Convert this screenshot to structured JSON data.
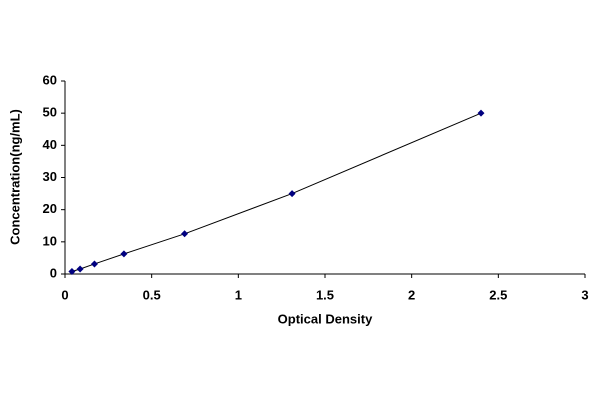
{
  "chart_data": {
    "type": "scatter",
    "xlabel": "Optical Density",
    "ylabel": "Concentration(ng/mL)",
    "x": [
      0.04,
      0.087,
      0.17,
      0.34,
      0.69,
      1.31,
      2.4
    ],
    "values": [
      0.78,
      1.56,
      3.12,
      6.25,
      12.5,
      25,
      50
    ],
    "color": "#000080",
    "line_color": "#000000",
    "connect": true,
    "xlim": [
      0,
      3
    ],
    "xticks": [
      0,
      0.5,
      1,
      1.5,
      2,
      2.5,
      3
    ],
    "ylim": [
      0,
      60
    ],
    "yticks": [
      0,
      10,
      20,
      30,
      40,
      50,
      60
    ],
    "grid": false
  }
}
